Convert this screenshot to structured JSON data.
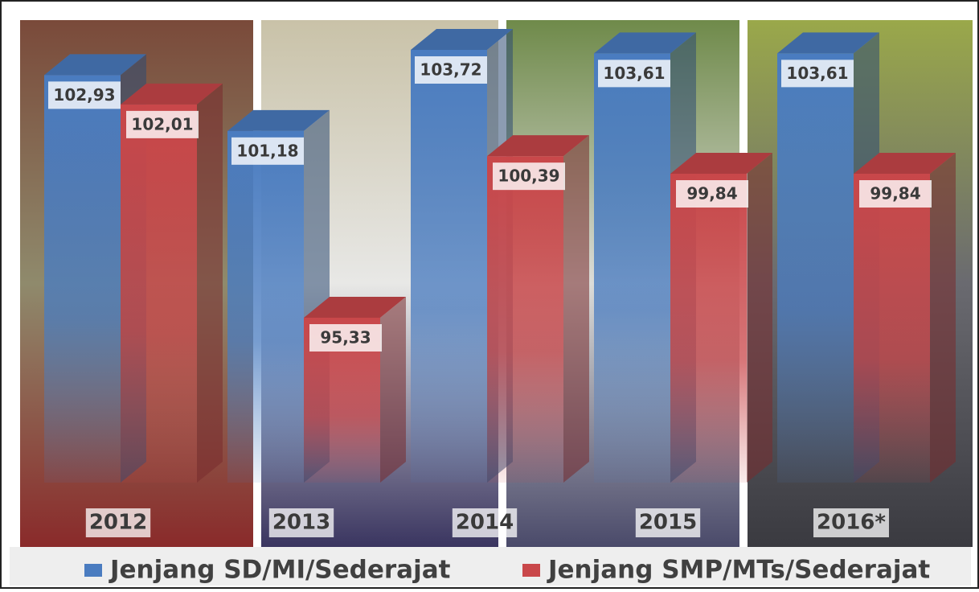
{
  "chart_data": {
    "type": "bar",
    "categories": [
      "2012",
      "2013",
      "2014",
      "2015",
      "2016*"
    ],
    "series": [
      {
        "name": "Jenjang SD/MI/Sederajat",
        "color": "#4a7cc0",
        "values": [
          102.93,
          101.18,
          103.72,
          103.61,
          103.61
        ],
        "value_labels": [
          "102,93",
          "101,18",
          "103,72",
          "103,61",
          "103,61"
        ]
      },
      {
        "name": "Jenjang SMP/MTs/Sederajat",
        "color": "#c9474a",
        "values": [
          102.01,
          95.33,
          100.39,
          99.84,
          99.84
        ],
        "value_labels": [
          "102,01",
          "95,33",
          "100,39",
          "99,84",
          "99,84"
        ]
      }
    ]
  }
}
